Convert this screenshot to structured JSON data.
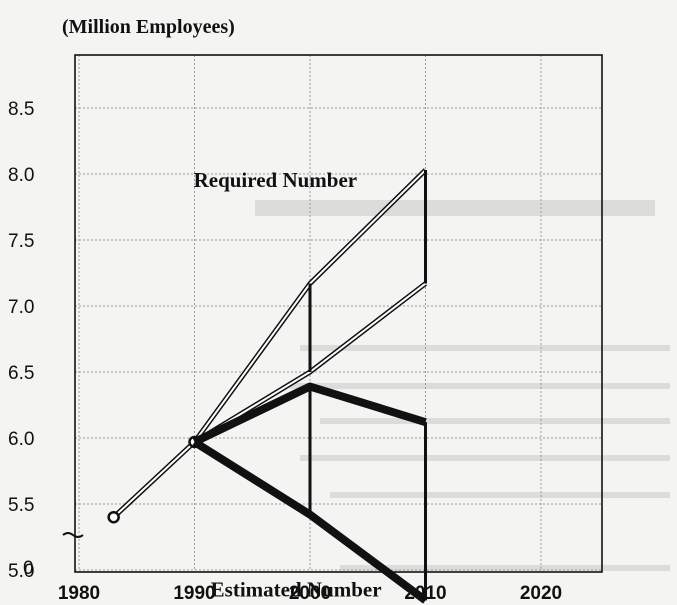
{
  "chart_data": {
    "type": "line",
    "title": "",
    "ylabel": "(Million Employees)",
    "xlabel": "",
    "ylim": [
      5.0,
      8.5
    ],
    "xlim": [
      1980,
      2020
    ],
    "yticks": [
      "8.5",
      "8.0",
      "7.5",
      "7.0",
      "6.5",
      "6.0",
      "5.5",
      "5.0"
    ],
    "ytick_zero": "0",
    "xticks": [
      "1980",
      "1990",
      "2000",
      "2010",
      "2020"
    ],
    "grid": true,
    "series": [
      {
        "name": "Required Number",
        "style": "outline",
        "points": [
          [
            1983,
            5.4
          ],
          [
            1990,
            5.97
          ],
          [
            2000,
            7.17
          ],
          [
            2010,
            8.03
          ]
        ],
        "lower_points": [
          [
            1990,
            5.97
          ],
          [
            2000,
            6.5
          ],
          [
            2010,
            7.17
          ]
        ]
      },
      {
        "name": "Estimated Number",
        "style": "thick",
        "points": [
          [
            1990,
            5.97
          ],
          [
            2000,
            6.39
          ],
          [
            2010,
            6.12
          ]
        ],
        "lower_points": [
          [
            1990,
            5.97
          ],
          [
            2000,
            5.42
          ],
          [
            2010,
            4.77
          ]
        ]
      }
    ],
    "annotations": [
      {
        "text": "Required Number",
        "x": 1997,
        "y": 7.9
      },
      {
        "text": "Estimated Number",
        "x": 1998.8,
        "y": 4.8
      }
    ],
    "colors": {
      "grid": "#9a9a9a",
      "axis": "#111111",
      "line": "#111111",
      "outline_fill": "#ffffff"
    }
  }
}
